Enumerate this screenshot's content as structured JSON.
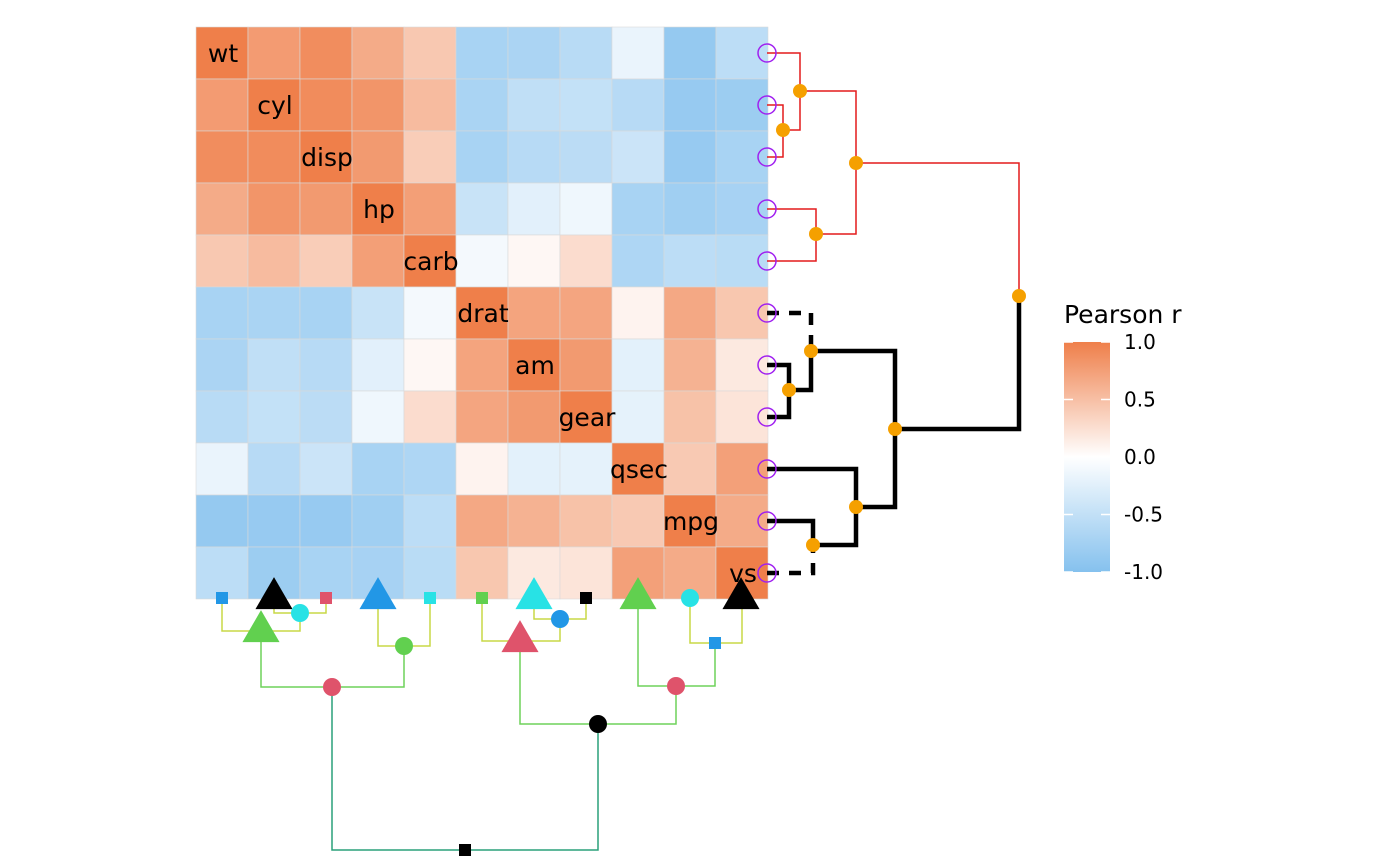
{
  "chart_data": {
    "type": "heatmap",
    "variables": [
      "wt",
      "cyl",
      "disp",
      "hp",
      "carb",
      "drat",
      "am",
      "gear",
      "qsec",
      "mpg",
      "vs"
    ],
    "matrix": [
      [
        1.0,
        0.78,
        0.89,
        0.66,
        0.43,
        -0.71,
        -0.69,
        -0.58,
        -0.17,
        -0.87,
        -0.55
      ],
      [
        0.78,
        1.0,
        0.9,
        0.83,
        0.53,
        -0.7,
        -0.52,
        -0.49,
        -0.59,
        -0.85,
        -0.81
      ],
      [
        0.89,
        0.9,
        1.0,
        0.79,
        0.39,
        -0.71,
        -0.59,
        -0.56,
        -0.43,
        -0.85,
        -0.71
      ],
      [
        0.66,
        0.83,
        0.79,
        1.0,
        0.75,
        -0.45,
        -0.24,
        -0.13,
        -0.71,
        -0.78,
        -0.72
      ],
      [
        0.43,
        0.53,
        0.39,
        0.75,
        1.0,
        -0.09,
        0.06,
        0.27,
        -0.66,
        -0.55,
        -0.57
      ],
      [
        -0.71,
        -0.7,
        -0.71,
        -0.45,
        -0.09,
        1.0,
        0.71,
        0.7,
        0.09,
        0.68,
        0.44
      ],
      [
        -0.69,
        -0.52,
        -0.59,
        -0.24,
        0.06,
        0.71,
        1.0,
        0.79,
        -0.23,
        0.6,
        0.17
      ],
      [
        -0.58,
        -0.49,
        -0.56,
        -0.13,
        0.27,
        0.7,
        0.79,
        1.0,
        -0.21,
        0.48,
        0.21
      ],
      [
        -0.17,
        -0.59,
        -0.43,
        -0.71,
        -0.66,
        0.09,
        -0.23,
        -0.21,
        1.0,
        0.42,
        0.74
      ],
      [
        -0.87,
        -0.85,
        -0.85,
        -0.78,
        -0.55,
        0.68,
        0.6,
        0.48,
        0.42,
        1.0,
        0.66
      ],
      [
        -0.55,
        -0.81,
        -0.71,
        -0.72,
        -0.57,
        0.44,
        0.17,
        0.21,
        0.74,
        0.66,
        1.0
      ]
    ],
    "color_scale": {
      "low": "#85c1ee",
      "mid": "#ffffff",
      "high": "#ef7f4a",
      "limits": [
        -1,
        1
      ]
    },
    "legend": {
      "title": "Pearson r",
      "ticks": [
        "1.0",
        "0.5",
        "0.0",
        "-0.5",
        "-1.0"
      ],
      "tick_values": [
        1.0,
        0.5,
        0.0,
        -0.5,
        -1.0
      ],
      "placement": "right"
    },
    "row_dendrogram": {
      "position": "right",
      "red_cluster_color": "#e41a1c",
      "black_cluster_color": "#000000",
      "node_color": "#f5a000",
      "leaf_marker_color": "#a020f0"
    },
    "column_dendrogram": {
      "position": "bottom",
      "branch_colors": [
        "#c8d846",
        "#6ed25a",
        "#2aa07a"
      ]
    },
    "marker_colors": {
      "black": "#000000",
      "red": "#df536b",
      "green": "#61d04f",
      "blue": "#2297e6",
      "cyan": "#28e2e5"
    }
  }
}
